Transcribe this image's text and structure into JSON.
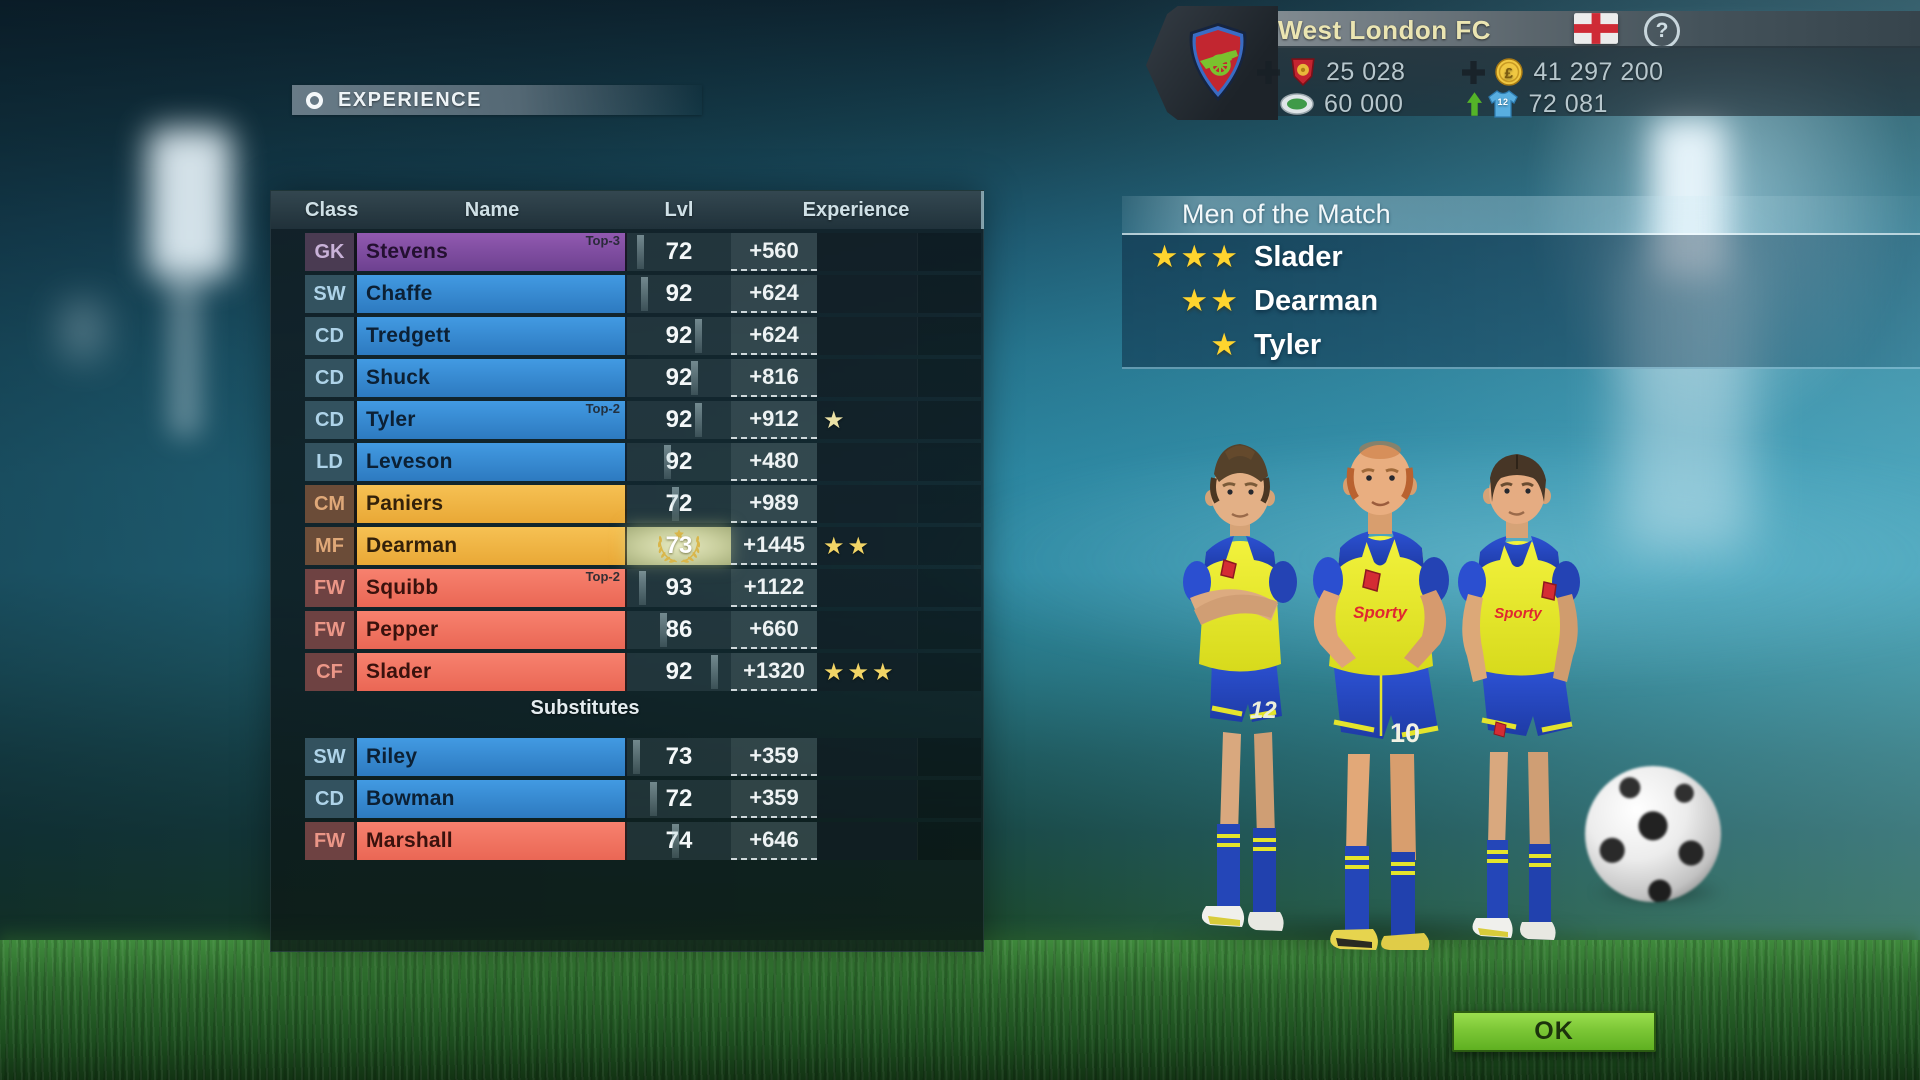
{
  "header": {
    "team_name": "West London FC",
    "help_label": "?",
    "resources": {
      "fans": {
        "icon": "fans-badge-icon",
        "addable": true,
        "value": "25 028"
      },
      "money": {
        "icon": "pound-coin-icon",
        "addable": true,
        "value": "41 297 200"
      },
      "stadium": {
        "icon": "stadium-icon",
        "value": "60 000"
      },
      "attendance": {
        "icon": "jersey-icon",
        "jersey_number": "12",
        "trend": "up",
        "value": "72 081"
      }
    }
  },
  "screen_title": "EXPERIENCE",
  "squad_table": {
    "columns": [
      "Class",
      "Name",
      "Lvl",
      "Experience"
    ],
    "substitutes_label": "Substitutes",
    "starters": [
      {
        "class": "GK",
        "name": "Stevens",
        "badge": "Top-3",
        "lvl": "72",
        "exp": "+560",
        "stars": 0,
        "color": "purple",
        "progress": 0.08
      },
      {
        "class": "SW",
        "name": "Chaffe",
        "lvl": "92",
        "exp": "+624",
        "stars": 0,
        "color": "blue",
        "progress": 0.13
      },
      {
        "class": "CD",
        "name": "Tredgett",
        "lvl": "92",
        "exp": "+624",
        "stars": 0,
        "color": "blue",
        "progress": 0.7
      },
      {
        "class": "CD",
        "name": "Shuck",
        "lvl": "92",
        "exp": "+816",
        "stars": 0,
        "color": "blue",
        "progress": 0.66
      },
      {
        "class": "CD",
        "name": "Tyler",
        "badge": "Top-2",
        "lvl": "92",
        "exp": "+912",
        "stars": 1,
        "star_tone": "pale",
        "color": "blue",
        "progress": 0.7
      },
      {
        "class": "LD",
        "name": "Leveson",
        "lvl": "92",
        "exp": "+480",
        "stars": 0,
        "color": "blue",
        "progress": 0.37
      },
      {
        "class": "CM",
        "name": "Paniers",
        "lvl": "72",
        "exp": "+989",
        "stars": 0,
        "color": "orange",
        "progress": 0.46
      },
      {
        "class": "MF",
        "name": "Dearman",
        "lvl": "73",
        "exp": "+1445",
        "stars": 2,
        "color": "orange",
        "levelup": true
      },
      {
        "class": "FW",
        "name": "Squibb",
        "badge": "Top-2",
        "lvl": "93",
        "exp": "+1122",
        "stars": 0,
        "color": "red",
        "progress": 0.11
      },
      {
        "class": "FW",
        "name": "Pepper",
        "lvl": "86",
        "exp": "+660",
        "stars": 0,
        "color": "red",
        "progress": 0.33
      },
      {
        "class": "CF",
        "name": "Slader",
        "lvl": "92",
        "exp": "+1320",
        "stars": 3,
        "color": "red",
        "progress": 0.88
      }
    ],
    "substitutes": [
      {
        "class": "SW",
        "name": "Riley",
        "lvl": "73",
        "exp": "+359",
        "stars": 0,
        "color": "blue",
        "progress": 0.04
      },
      {
        "class": "CD",
        "name": "Bowman",
        "lvl": "72",
        "exp": "+359",
        "stars": 0,
        "color": "blue",
        "progress": 0.22
      },
      {
        "class": "FW",
        "name": "Marshall",
        "lvl": "74",
        "exp": "+646",
        "stars": 0,
        "color": "red",
        "progress": 0.46
      }
    ]
  },
  "men_of_the_match": {
    "title": "Men of the Match",
    "entries": [
      {
        "stars": 3,
        "name": "Slader"
      },
      {
        "stars": 2,
        "name": "Dearman"
      },
      {
        "stars": 1,
        "name": "Tyler"
      }
    ]
  },
  "ok_button": "OK",
  "players_art": {
    "left": {
      "shorts_number": "12"
    },
    "middle": {
      "shorts_number": "10",
      "sponsor": "Sporty"
    },
    "right": {
      "sponsor": "Sporty"
    }
  },
  "colors": {
    "ok_green": "#7ccb35",
    "star_gold": "#ffd42e",
    "class_goalkeeper": "#8a57a8",
    "class_defence": "#3a8ed6",
    "class_midfield": "#f0b445",
    "class_forward": "#f27764",
    "levelup_cell": "#c8ce9d"
  }
}
